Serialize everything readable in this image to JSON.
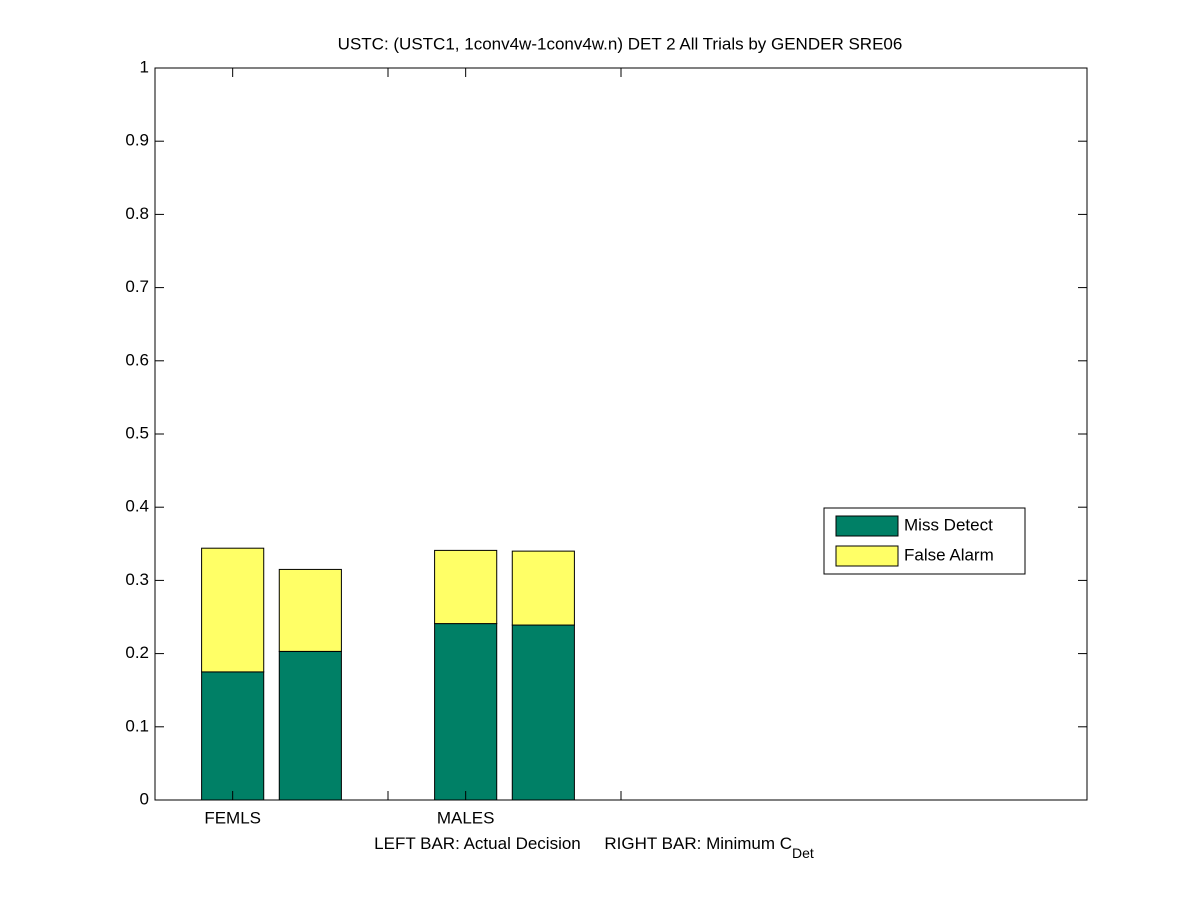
{
  "chart_data": {
    "type": "stacked_bar",
    "title": "USTC: (USTC1, 1conv4w-1conv4w.n) DET 2 All Trials by GENDER SRE06",
    "x": [
      1,
      2,
      4,
      5
    ],
    "bar_width": 0.8,
    "series": [
      {
        "name": "Miss Detect",
        "color": "#008066",
        "values": [
          0.175,
          0.203,
          0.241,
          0.239
        ]
      },
      {
        "name": "False Alarm",
        "color": "#ffff66",
        "values": [
          0.169,
          0.112,
          0.1,
          0.101
        ]
      }
    ],
    "xlim": [
      0,
      12
    ],
    "xticks": [
      1,
      3,
      4,
      6
    ],
    "xtick_labels": [
      "FEMLS",
      null,
      "MALES",
      null
    ],
    "xlabel": "LEFT BAR: Actual Decision     RIGHT BAR: Minimum C",
    "xlabel_subscript": "Det",
    "ylim": [
      0,
      1
    ],
    "yticks": [
      0,
      0.1,
      0.2,
      0.3,
      0.4,
      0.5,
      0.6,
      0.7,
      0.8,
      0.9,
      1
    ],
    "legend": "right"
  }
}
